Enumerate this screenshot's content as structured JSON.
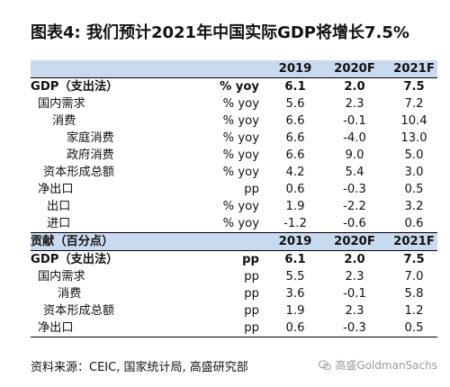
{
  "title": "图表4: 我们预计2021年中国实际GDP将增长7.5%",
  "header": {
    "col1": "2019",
    "col2": "2020F",
    "col3": "2021F"
  },
  "section1": {
    "rows": [
      {
        "label": "GDP（支出法）",
        "unit": "% yoy",
        "v2019": "6.1",
        "v2020": "2.0",
        "v2021": "7.5"
      },
      {
        "label": "国内需求",
        "unit": "% yoy",
        "v2019": "5.6",
        "v2020": "2.3",
        "v2021": "7.2"
      },
      {
        "label": "消费",
        "unit": "% yoy",
        "v2019": "6.6",
        "v2020": "-0.1",
        "v2021": "10.4"
      },
      {
        "label": "家庭消费",
        "unit": "% yoy",
        "v2019": "6.6",
        "v2020": "-4.0",
        "v2021": "13.0"
      },
      {
        "label": "政府消费",
        "unit": "% yoy",
        "v2019": "6.6",
        "v2020": "9.0",
        "v2021": "5.0"
      },
      {
        "label": "资本形成总额",
        "unit": "% yoy",
        "v2019": "4.2",
        "v2020": "5.4",
        "v2021": "3.0"
      },
      {
        "label": "净出口",
        "unit": "pp",
        "v2019": "0.6",
        "v2020": "-0.3",
        "v2021": "0.5"
      },
      {
        "label": "出口",
        "unit": "% yoy",
        "v2019": "1.9",
        "v2020": "-2.2",
        "v2021": "3.2"
      },
      {
        "label": "进口",
        "unit": "% yoy",
        "v2019": "-1.2",
        "v2020": "-0.6",
        "v2021": "0.6"
      }
    ]
  },
  "section2": {
    "header_label": "贡献（百分点）",
    "rows": [
      {
        "label": "GDP（支出法）",
        "unit": "pp",
        "v2019": "6.1",
        "v2020": "2.0",
        "v2021": "7.5"
      },
      {
        "label": "国内需求",
        "unit": "pp",
        "v2019": "5.5",
        "v2020": "2.3",
        "v2021": "7.0"
      },
      {
        "label": "消费",
        "unit": "pp",
        "v2019": "3.6",
        "v2020": "-0.1",
        "v2021": "5.8"
      },
      {
        "label": "资本形成总额",
        "unit": "pp",
        "v2019": "1.9",
        "v2020": "2.3",
        "v2021": "1.2"
      },
      {
        "label": "净出口",
        "unit": "pp",
        "v2019": "0.6",
        "v2020": "-0.3",
        "v2021": "0.5"
      }
    ]
  },
  "source": "资料来源：CEIC, 国家统计局, 高盛研究部",
  "watermark": "高盛GoldmanSachs",
  "icons": {
    "watermark_icon": "wechat-icon"
  }
}
